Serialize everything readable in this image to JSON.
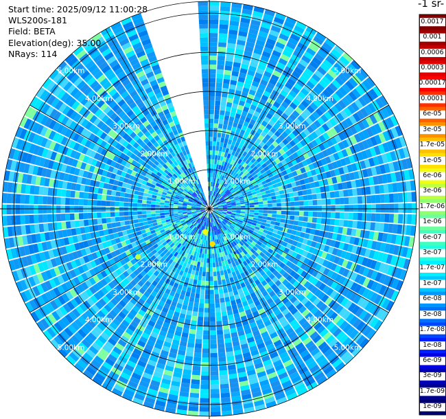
{
  "info": {
    "start_time": "Start time: 2025/09/12 11:00:28",
    "instrument": "WLS200s-181",
    "field": "Field: BETA",
    "elevation": "Elevation(deg): 35.00",
    "nrays": "NRays: 114"
  },
  "colorbar": {
    "title": "-1 sr-",
    "ticks": [
      "0.0017",
      "0.001",
      "0.0006",
      "0.0003",
      "0.00017",
      "0.0001",
      "6e-05",
      "3e-05",
      "1.7e-05",
      "1e-05",
      "6e-06",
      "3e-06",
      "1.7e-06",
      "1e-06",
      "6e-07",
      "3e-07",
      "1.7e-07",
      "1e-07",
      "6e-08",
      "3e-08",
      "1.7e-08",
      "1e-08",
      "6e-09",
      "3e-09",
      "1.7e-09",
      "1e-09"
    ],
    "colors": [
      "#800000",
      "#a00000",
      "#c00000",
      "#e00000",
      "#ff0000",
      "#ff3000",
      "#ff6000",
      "#ff9000",
      "#ffc000",
      "#ffe000",
      "#f0ff10",
      "#c0ff40",
      "#90ff70",
      "#70ffa0",
      "#40ffc0",
      "#20ffe0",
      "#00f0ff",
      "#00c8ff",
      "#0098ff",
      "#0070ff",
      "#0048ff",
      "#0020ff",
      "#0000e0",
      "#0000b4",
      "#000090",
      "#000070"
    ]
  },
  "chart_data": {
    "type": "ppi",
    "field": "BETA",
    "elevation_deg": 35.0,
    "n_rays": 114,
    "max_range_km": 5.3,
    "ring_labels": [
      "1.00km",
      "2.00km",
      "3.00km",
      "4.00km",
      "5.00km"
    ],
    "ring_ranges_km": [
      1,
      2,
      3,
      4,
      5
    ],
    "spoke_angles_deg": [
      0,
      30,
      60,
      90,
      120,
      150,
      180,
      210,
      240,
      270,
      300,
      330
    ],
    "gap_sector_deg": [
      338,
      359
    ],
    "colorbar_label": "-1 sr-",
    "colorbar_ticks": [
      "0.0017",
      "0.001",
      "0.0006",
      "0.0003",
      "0.00017",
      "0.0001",
      "6e-05",
      "3e-05",
      "1.7e-05",
      "1e-05",
      "6e-06",
      "3e-06",
      "1.7e-06",
      "1e-06",
      "6e-07",
      "3e-07",
      "1.7e-07",
      "1e-07",
      "6e-08",
      "3e-08",
      "1.7e-08",
      "1e-08",
      "6e-09",
      "3e-09",
      "1.7e-09",
      "1e-09"
    ],
    "typical_value_range": [
      "6e-08",
      "1e-07"
    ],
    "hotspot_max_approx": "1.7e-06"
  }
}
